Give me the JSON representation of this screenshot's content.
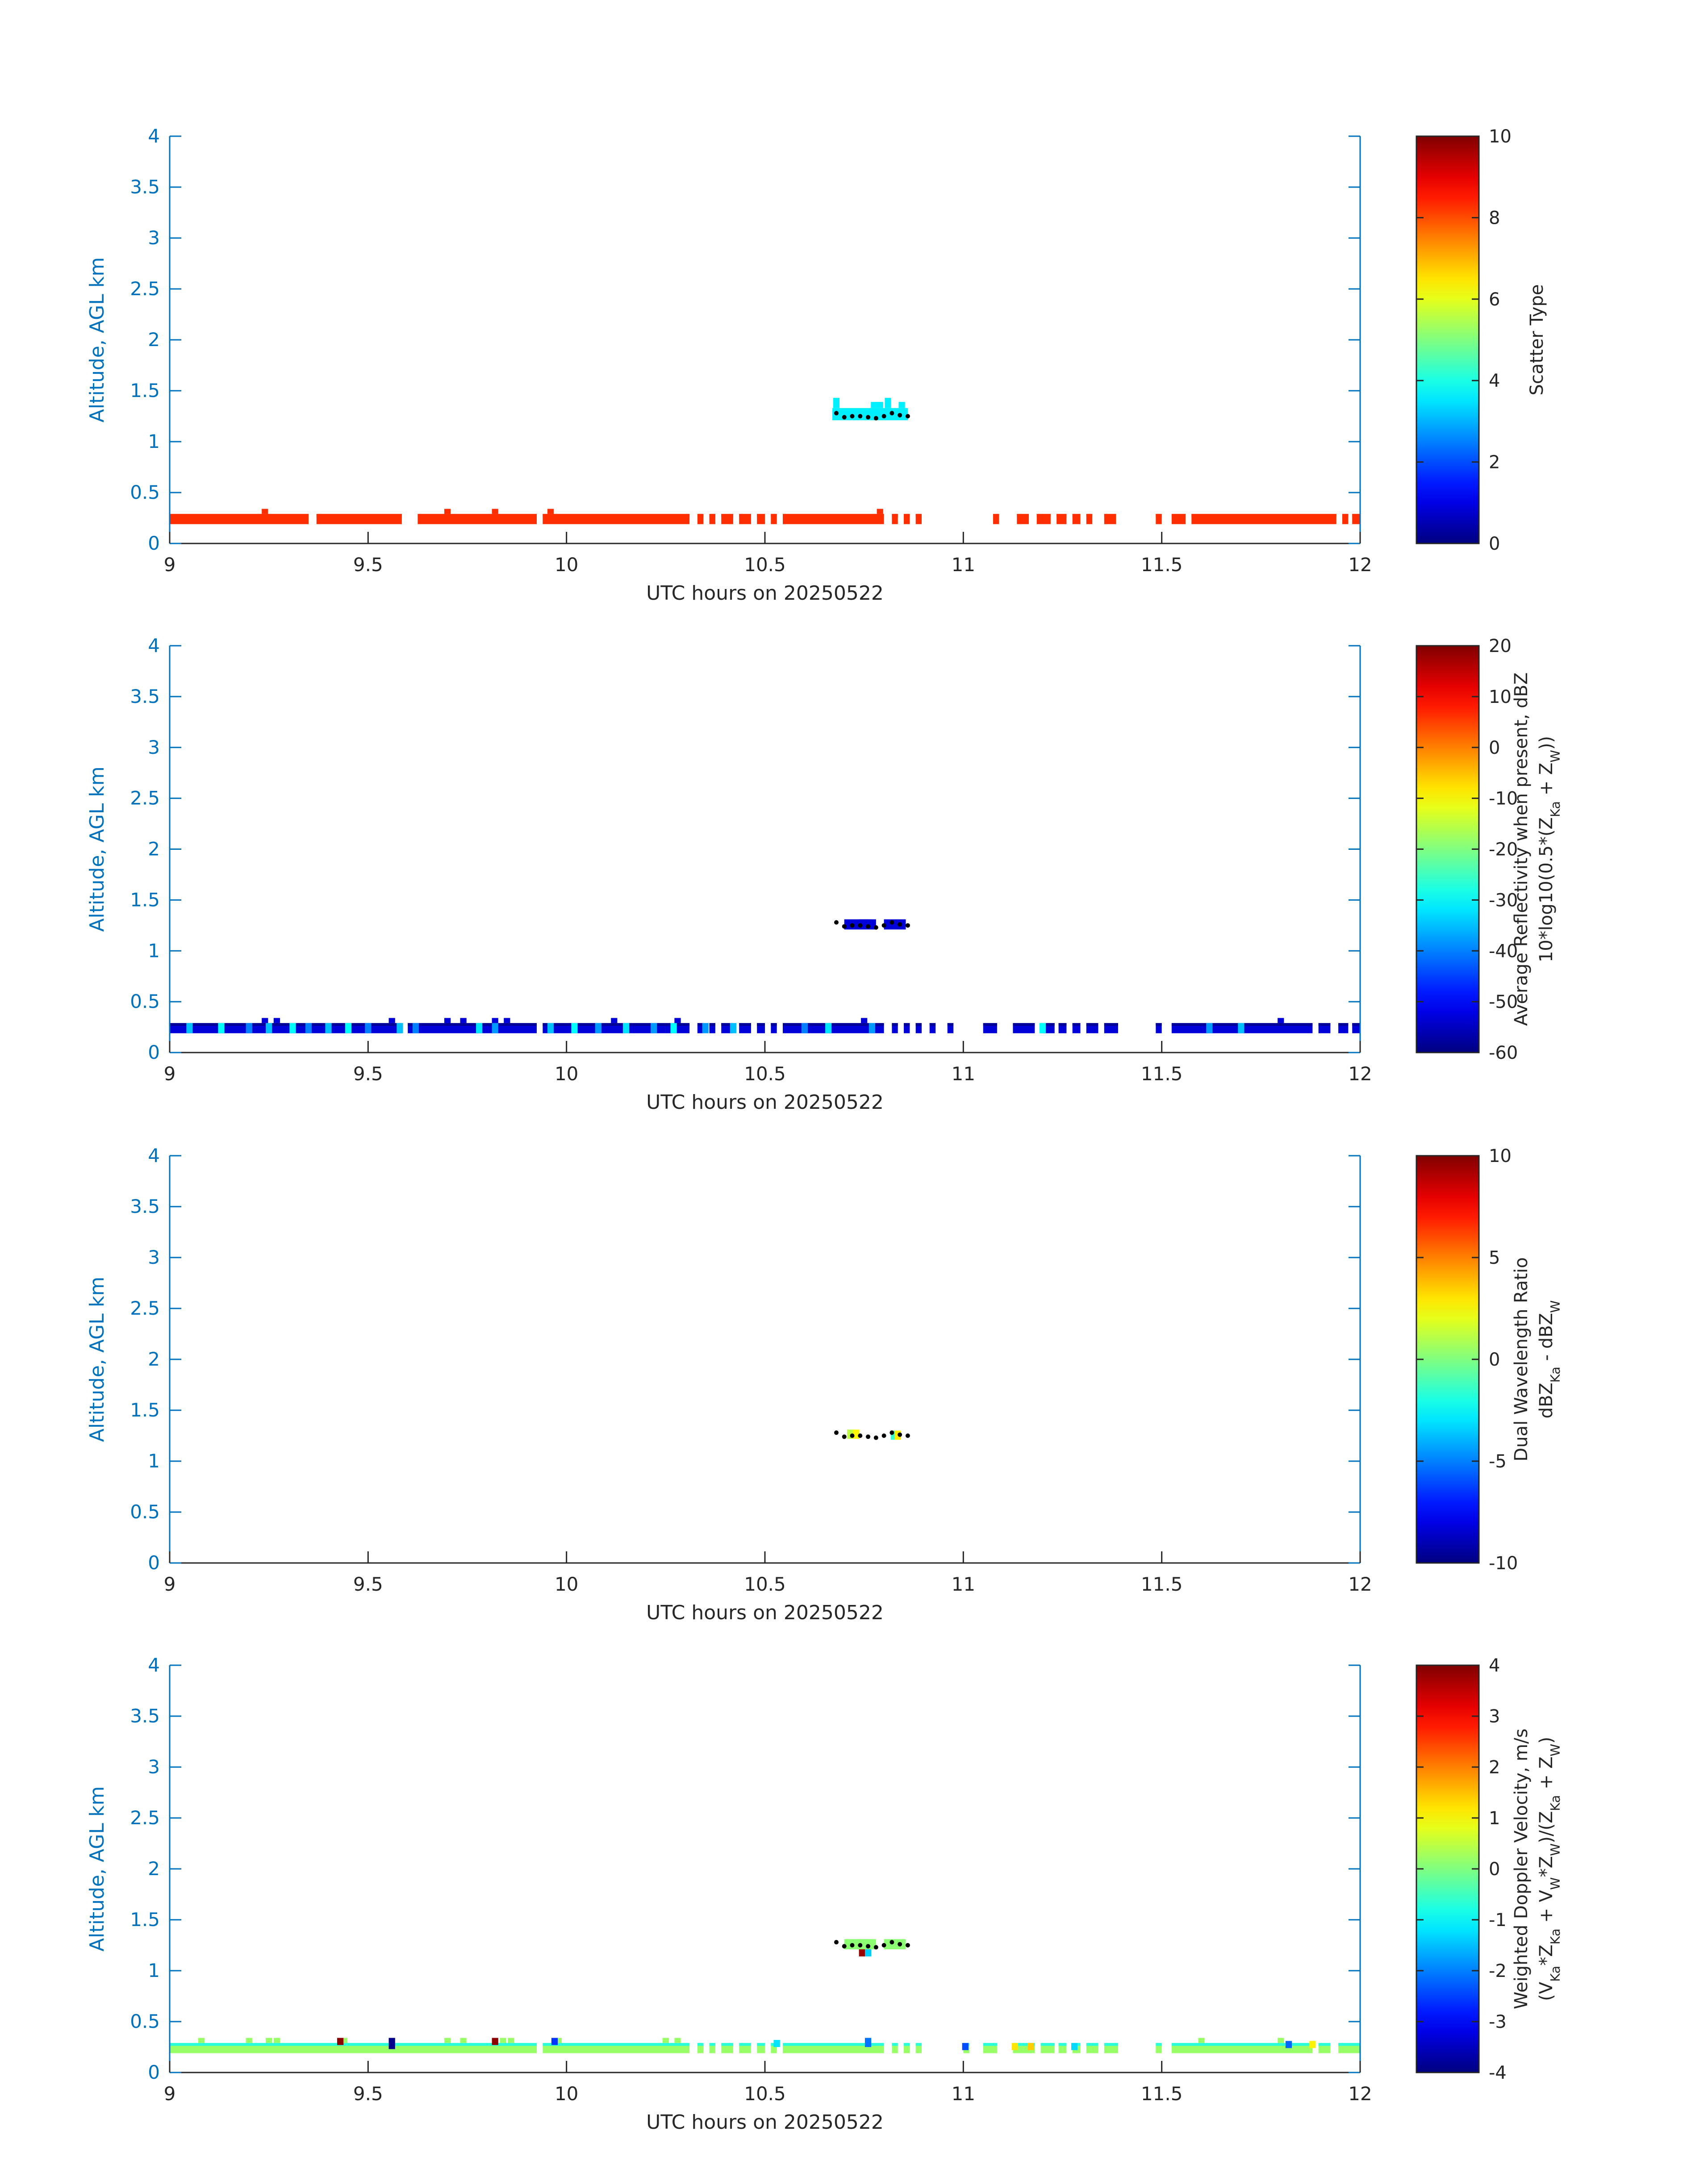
{
  "colors": {
    "axis": "#0072BD",
    "text": "#262626",
    "dots": "#000000",
    "background": "#ffffff"
  },
  "chart_data": [
    {
      "type": "heatmap",
      "title": "",
      "xlabel": "UTC hours on 20250522",
      "ylabel": "Altitude, AGL km",
      "xlim": [
        9,
        12
      ],
      "ylim": [
        0,
        4
      ],
      "xticks": [
        "9",
        "9.5",
        "10",
        "10.5",
        "11",
        "11.5",
        "12"
      ],
      "yticks": [
        "0",
        "0.5",
        "1",
        "1.5",
        "2",
        "2.5",
        "3",
        "3.5",
        "4"
      ],
      "colorbar": {
        "label_lines": [
          "Scatter Type"
        ],
        "range": [
          0,
          10
        ],
        "ticks": [
          "0",
          "2",
          "4",
          "6",
          "8",
          "10"
        ]
      },
      "layers": [
        {
          "name": "near-surface scatter type",
          "y0": 0.19,
          "y1": 0.29,
          "default_value": 8.3,
          "outline_value": 8.3,
          "segments": [
            [
              9.0,
              9.35
            ],
            [
              9.37,
              9.585
            ],
            [
              9.625,
              9.925
            ],
            [
              9.94,
              10.31
            ],
            [
              10.33,
              10.345
            ],
            [
              10.36,
              10.375
            ],
            [
              10.39,
              10.42
            ],
            [
              10.435,
              10.465
            ],
            [
              10.48,
              10.5
            ],
            [
              10.515,
              10.53
            ],
            [
              10.545,
              10.8
            ],
            [
              10.82,
              10.835
            ],
            [
              10.85,
              10.865
            ],
            [
              10.88,
              10.895
            ],
            [
              11.075,
              11.09
            ],
            [
              11.135,
              11.165
            ],
            [
              11.185,
              11.22
            ],
            [
              11.235,
              11.26
            ],
            [
              11.275,
              11.295
            ],
            [
              11.31,
              11.325
            ],
            [
              11.355,
              11.385
            ],
            [
              11.485,
              11.5
            ],
            [
              11.525,
              11.56
            ],
            [
              11.575,
              11.94
            ],
            [
              11.955,
              11.97
            ],
            [
              11.98,
              12.0
            ]
          ],
          "bumps": [
            [
              9.24,
              0.34
            ],
            [
              9.7,
              0.34
            ],
            [
              9.82,
              0.34
            ],
            [
              9.96,
              0.34
            ],
            [
              10.79,
              0.34
            ]
          ]
        },
        {
          "name": "cloud layer scatter type",
          "y0": 1.21,
          "y1": 1.33,
          "default_value": 3.6,
          "segments": [
            [
              10.67,
              10.86
            ]
          ],
          "bumps": [
            [
              10.68,
              1.43
            ],
            [
              10.775,
              1.39
            ],
            [
              10.79,
              1.39
            ],
            [
              10.81,
              1.43
            ],
            [
              10.845,
              1.39
            ]
          ]
        }
      ],
      "dots": [
        [
          10.68,
          1.28
        ],
        [
          10.7,
          1.24
        ],
        [
          10.72,
          1.25
        ],
        [
          10.74,
          1.25
        ],
        [
          10.76,
          1.24
        ],
        [
          10.78,
          1.23
        ],
        [
          10.8,
          1.25
        ],
        [
          10.82,
          1.28
        ],
        [
          10.84,
          1.26
        ],
        [
          10.86,
          1.25
        ]
      ]
    },
    {
      "type": "heatmap",
      "title": "",
      "xlabel": "UTC hours on 20250522",
      "ylabel": "Altitude, AGL km",
      "xlim": [
        9,
        12
      ],
      "ylim": [
        0,
        4
      ],
      "xticks": [
        "9",
        "9.5",
        "10",
        "10.5",
        "11",
        "11.5",
        "12"
      ],
      "yticks": [
        "0",
        "0.5",
        "1",
        "1.5",
        "2",
        "2.5",
        "3",
        "3.5",
        "4"
      ],
      "colorbar": {
        "label_lines": [
          "Average Reflectivity when present, dBZ",
          "10*log10(0.5*(Z_Ka + Z_W))"
        ],
        "range": [
          -60,
          20
        ],
        "ticks": [
          "-60",
          "-50",
          "-40",
          "-30",
          "-20",
          "-10",
          "0",
          "10",
          "20"
        ]
      },
      "layers": [
        {
          "name": "near-surface reflectivity",
          "y0": 0.19,
          "y1": 0.29,
          "default_value": -53,
          "outline_value": -58,
          "segments": [
            [
              9.0,
              9.585
            ],
            [
              9.6,
              9.925
            ],
            [
              9.94,
              10.31
            ],
            [
              10.33,
              10.345
            ],
            [
              10.36,
              10.375
            ],
            [
              10.39,
              10.42
            ],
            [
              10.435,
              10.465
            ],
            [
              10.48,
              10.5
            ],
            [
              10.515,
              10.53
            ],
            [
              10.545,
              10.8
            ],
            [
              10.82,
              10.835
            ],
            [
              10.85,
              10.865
            ],
            [
              10.88,
              10.895
            ],
            [
              10.915,
              10.93
            ],
            [
              10.96,
              10.975
            ],
            [
              11.05,
              11.085
            ],
            [
              11.125,
              11.18
            ],
            [
              11.195,
              11.23
            ],
            [
              11.24,
              11.26
            ],
            [
              11.275,
              11.295
            ],
            [
              11.31,
              11.34
            ],
            [
              11.355,
              11.39
            ],
            [
              11.485,
              11.5
            ],
            [
              11.525,
              11.88
            ],
            [
              11.895,
              11.925
            ],
            [
              11.945,
              11.97
            ],
            [
              11.98,
              12.0
            ]
          ],
          "bumps": [
            [
              9.24,
              0.34
            ],
            [
              9.27,
              0.34
            ],
            [
              9.56,
              0.34
            ],
            [
              9.7,
              0.34
            ],
            [
              9.74,
              0.34
            ],
            [
              9.82,
              0.34
            ],
            [
              9.85,
              0.34
            ],
            [
              10.12,
              0.34
            ],
            [
              10.28,
              0.34
            ],
            [
              10.75,
              0.34
            ],
            [
              11.8,
              0.34
            ]
          ]
        },
        {
          "name": "cloud layer reflectivity",
          "y0": 1.21,
          "y1": 1.31,
          "default_value": -53,
          "segments": [
            [
              10.7,
              10.78
            ],
            [
              10.8,
              10.855
            ]
          ],
          "bumps": [
            [
              10.745,
              1.15
            ],
            [
              10.76,
              1.15
            ]
          ]
        }
      ],
      "cells": [
        [
          9.05,
          -35
        ],
        [
          9.13,
          -30
        ],
        [
          9.2,
          -40
        ],
        [
          9.25,
          -35
        ],
        [
          9.31,
          -30
        ],
        [
          9.35,
          -40
        ],
        [
          9.4,
          -35
        ],
        [
          9.45,
          -30
        ],
        [
          9.5,
          -40
        ],
        [
          9.58,
          -35
        ],
        [
          9.62,
          -40
        ],
        [
          9.78,
          -32
        ],
        [
          9.82,
          -38
        ],
        [
          9.96,
          -35
        ],
        [
          10.02,
          -30
        ],
        [
          10.08,
          -38
        ],
        [
          10.15,
          -32
        ],
        [
          10.22,
          -38
        ],
        [
          10.27,
          -30
        ],
        [
          10.35,
          -38
        ],
        [
          10.42,
          -35
        ],
        [
          10.6,
          -40
        ],
        [
          10.66,
          -32
        ],
        [
          10.77,
          -38
        ],
        [
          11.2,
          -30
        ],
        [
          11.62,
          -38
        ],
        [
          11.7,
          -35
        ]
      ],
      "dots": [
        [
          10.68,
          1.28
        ],
        [
          10.7,
          1.24
        ],
        [
          10.72,
          1.25
        ],
        [
          10.74,
          1.25
        ],
        [
          10.76,
          1.24
        ],
        [
          10.78,
          1.23
        ],
        [
          10.8,
          1.25
        ],
        [
          10.82,
          1.28
        ],
        [
          10.84,
          1.26
        ],
        [
          10.86,
          1.25
        ]
      ]
    },
    {
      "type": "heatmap",
      "title": "",
      "xlabel": "UTC hours on 20250522",
      "ylabel": "Altitude, AGL km",
      "xlim": [
        9,
        12
      ],
      "ylim": [
        0,
        4
      ],
      "xticks": [
        "9",
        "9.5",
        "10",
        "10.5",
        "11",
        "11.5",
        "12"
      ],
      "yticks": [
        "0",
        "0.5",
        "1",
        "1.5",
        "2",
        "2.5",
        "3",
        "3.5",
        "4"
      ],
      "colorbar": {
        "label_lines": [
          "Dual Wavelength Ratio",
          "dBZ_Ka - dBZ_W"
        ],
        "range": [
          -10,
          10
        ],
        "ticks": [
          "-10",
          "-5",
          "0",
          "5",
          "10"
        ]
      },
      "layers": [],
      "cells": [
        [
          10.715,
          1.22,
          1.31,
          1.2
        ],
        [
          10.73,
          1.22,
          1.31,
          2.6
        ],
        [
          10.825,
          1.21,
          1.3,
          -1.5
        ],
        [
          10.835,
          1.21,
          1.3,
          2.8
        ]
      ],
      "dots": [
        [
          10.68,
          1.28
        ],
        [
          10.7,
          1.24
        ],
        [
          10.72,
          1.25
        ],
        [
          10.74,
          1.25
        ],
        [
          10.76,
          1.24
        ],
        [
          10.78,
          1.23
        ],
        [
          10.8,
          1.25
        ],
        [
          10.82,
          1.28
        ],
        [
          10.84,
          1.26
        ],
        [
          10.86,
          1.25
        ]
      ]
    },
    {
      "type": "heatmap",
      "title": "",
      "xlabel": "UTC hours on 20250522",
      "ylabel": "Altitude, AGL km",
      "xlim": [
        9,
        12
      ],
      "ylim": [
        0,
        4
      ],
      "xticks": [
        "9",
        "9.5",
        "10",
        "10.5",
        "11",
        "11.5",
        "12"
      ],
      "yticks": [
        "0",
        "0.5",
        "1",
        "1.5",
        "2",
        "2.5",
        "3",
        "3.5",
        "4"
      ],
      "colorbar": {
        "label_lines": [
          "Weighted Doppler Velocity, m/s",
          "(V_Ka*Z_Ka + V_W*Z_W)/(Z_Ka + Z_W)"
        ],
        "range": [
          -4,
          4
        ],
        "ticks": [
          "-4",
          "-3",
          "-2",
          "-1",
          "0",
          "1",
          "2",
          "3",
          "4"
        ]
      },
      "layers": [
        {
          "name": "near-surface velocity",
          "y0": 0.19,
          "y1": 0.29,
          "default_value": 0.2,
          "outline_value": -0.7,
          "segments": [
            [
              9.0,
              9.925
            ],
            [
              9.94,
              10.31
            ],
            [
              10.33,
              10.345
            ],
            [
              10.36,
              10.375
            ],
            [
              10.39,
              10.42
            ],
            [
              10.435,
              10.465
            ],
            [
              10.48,
              10.5
            ],
            [
              10.515,
              10.53
            ],
            [
              10.545,
              10.8
            ],
            [
              10.82,
              10.835
            ],
            [
              10.85,
              10.865
            ],
            [
              10.88,
              10.895
            ],
            [
              11.0,
              11.015
            ],
            [
              11.05,
              11.085
            ],
            [
              11.125,
              11.18
            ],
            [
              11.195,
              11.23
            ],
            [
              11.24,
              11.26
            ],
            [
              11.275,
              11.295
            ],
            [
              11.31,
              11.34
            ],
            [
              11.355,
              11.39
            ],
            [
              11.485,
              11.5
            ],
            [
              11.525,
              11.88
            ],
            [
              11.895,
              11.925
            ],
            [
              11.945,
              12.0
            ]
          ],
          "bumps": [
            [
              9.08,
              0.34
            ],
            [
              9.2,
              0.34
            ],
            [
              9.25,
              0.34
            ],
            [
              9.27,
              0.34
            ],
            [
              9.44,
              0.34
            ],
            [
              9.56,
              0.34
            ],
            [
              9.7,
              0.34
            ],
            [
              9.74,
              0.34
            ],
            [
              9.84,
              0.34
            ],
            [
              9.86,
              0.34
            ],
            [
              9.98,
              0.34
            ],
            [
              10.25,
              0.34
            ],
            [
              10.28,
              0.34
            ],
            [
              11.6,
              0.34
            ],
            [
              11.8,
              0.34
            ]
          ]
        },
        {
          "name": "cloud layer velocity",
          "y0": 1.21,
          "y1": 1.31,
          "default_value": 0.1,
          "segments": [
            [
              10.7,
              10.78
            ],
            [
              10.8,
              10.855
            ]
          ],
          "bumps": [
            [
              10.745,
              1.15
            ],
            [
              10.76,
              1.15
            ]
          ]
        }
      ],
      "cells": [
        [
          9.43,
          0.27,
          0.34,
          3.9
        ],
        [
          9.56,
          0.23,
          0.34,
          -3.9
        ],
        [
          9.82,
          0.27,
          0.34,
          3.9
        ],
        [
          9.97,
          0.27,
          0.34,
          -2.6
        ],
        [
          10.53,
          0.25,
          0.32,
          -1.2
        ],
        [
          10.76,
          0.25,
          0.34,
          -2.1
        ],
        [
          11.005,
          0.22,
          0.29,
          -2.4
        ],
        [
          11.13,
          0.22,
          0.29,
          1.2
        ],
        [
          11.17,
          0.22,
          0.29,
          1.4
        ],
        [
          11.28,
          0.22,
          0.29,
          -1.3
        ],
        [
          11.82,
          0.24,
          0.31,
          -2.2
        ],
        [
          11.88,
          0.24,
          0.31,
          1.1
        ],
        [
          10.745,
          1.14,
          1.21,
          3.8
        ],
        [
          10.76,
          1.14,
          1.21,
          -1.4
        ]
      ],
      "dots": [
        [
          10.68,
          1.28
        ],
        [
          10.7,
          1.24
        ],
        [
          10.72,
          1.25
        ],
        [
          10.74,
          1.25
        ],
        [
          10.76,
          1.24
        ],
        [
          10.78,
          1.23
        ],
        [
          10.8,
          1.25
        ],
        [
          10.82,
          1.28
        ],
        [
          10.84,
          1.26
        ],
        [
          10.86,
          1.25
        ]
      ]
    }
  ]
}
